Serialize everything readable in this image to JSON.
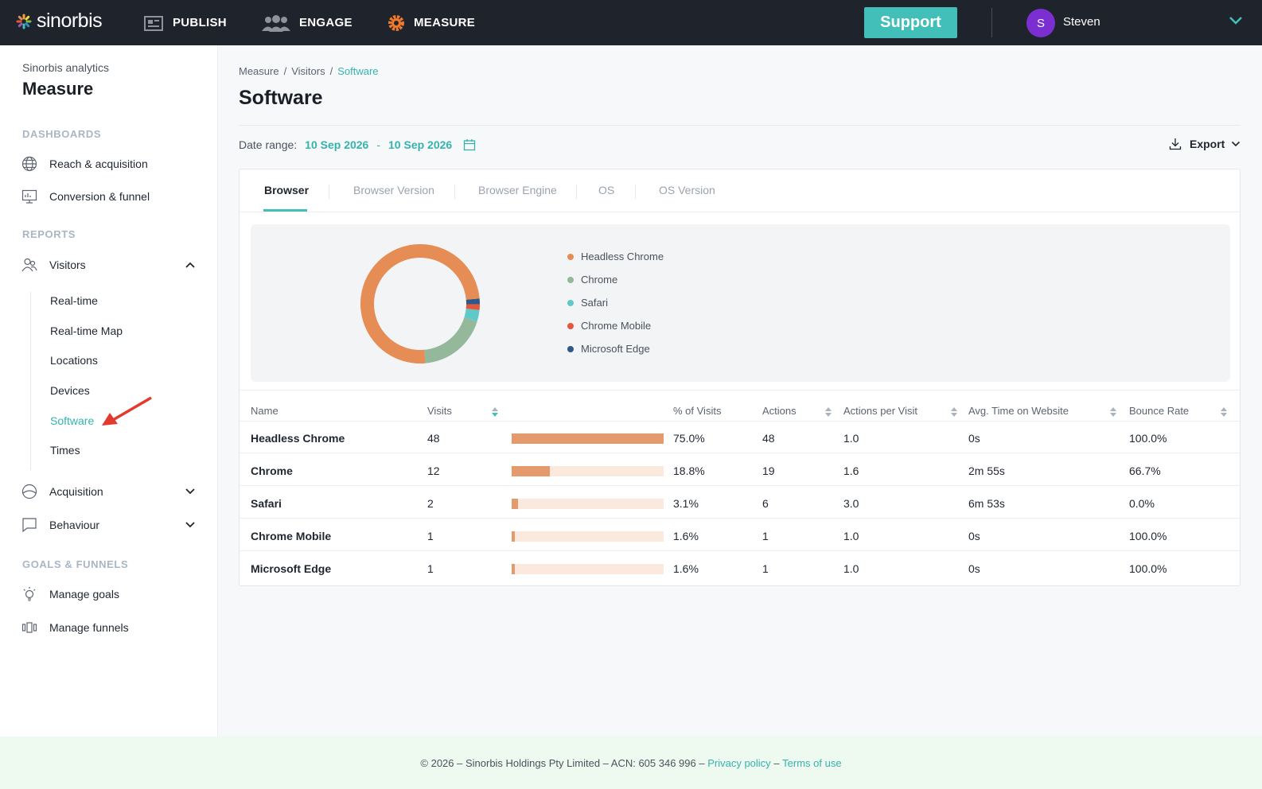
{
  "topbar": {
    "logo": "sinorbis",
    "nav": [
      {
        "label": "PUBLISH",
        "icon": "publish-icon"
      },
      {
        "label": "ENGAGE",
        "icon": "people-icon"
      },
      {
        "label": "MEASURE",
        "icon": "gear-icon"
      }
    ],
    "support_label": "Support",
    "user_initial": "S",
    "user_name": "Steven",
    "colors": {
      "bg": "#1f232b",
      "support": "#43bfba",
      "avatar": "#7b2fd1"
    }
  },
  "sidebar": {
    "subtitle": "Sinorbis analytics",
    "title": "Measure",
    "sections": {
      "dashboards": "DASHBOARDS",
      "reports": "REPORTS",
      "goals": "GOALS & FUNNELS"
    },
    "dashboards": [
      {
        "label": "Reach & acquisition",
        "icon": "globe-icon"
      },
      {
        "label": "Conversion & funnel",
        "icon": "presentation-icon"
      }
    ],
    "reports": [
      {
        "label": "Visitors",
        "icon": "visitors-icon"
      },
      {
        "label": "Acquisition",
        "icon": "acquisition-icon"
      },
      {
        "label": "Behaviour",
        "icon": "chat-icon"
      }
    ],
    "visitor_children": [
      "Real-time",
      "Real-time Map",
      "Locations",
      "Devices",
      "Software",
      "Times"
    ],
    "active_child": "Software",
    "goals": [
      {
        "label": "Manage goals",
        "icon": "lightbulb-icon"
      },
      {
        "label": "Manage funnels",
        "icon": "funnel-icon"
      }
    ]
  },
  "main": {
    "breadcrumb": [
      "Measure",
      "Visitors",
      "Software"
    ],
    "title": "Software",
    "date_label": "Date range:",
    "date_from": "10 Sep 2026",
    "date_to": "10 Sep 2026",
    "export_label": "Export",
    "tabs": [
      "Browser",
      "Browser Version",
      "Browser Engine",
      "OS",
      "OS Version"
    ],
    "active_tab": "Browser"
  },
  "chart_data": {
    "type": "pie",
    "categories": [
      "Headless Chrome",
      "Chrome",
      "Safari",
      "Chrome Mobile",
      "Microsoft Edge"
    ],
    "values": [
      48,
      12,
      2,
      1,
      1
    ],
    "colors": [
      "#e58d55",
      "#94b89a",
      "#5fc9c9",
      "#e4573d",
      "#2f5889"
    ],
    "legend": "right"
  },
  "table": {
    "headers": [
      "Name",
      "Visits",
      "% of Visits",
      "Actions",
      "Actions per Visit",
      "Avg. Time on Website",
      "Bounce Rate"
    ],
    "rows": [
      {
        "name": "Headless Chrome",
        "visits": "48",
        "pct": "75.0%",
        "share": 1.0,
        "actions": "48",
        "apv": "1.0",
        "time": "0s",
        "bounce": "100.0%"
      },
      {
        "name": "Chrome",
        "visits": "12",
        "pct": "18.8%",
        "share": 0.25,
        "actions": "19",
        "apv": "1.6",
        "time": "2m 55s",
        "bounce": "66.7%"
      },
      {
        "name": "Safari",
        "visits": "2",
        "pct": "3.1%",
        "share": 0.042,
        "actions": "6",
        "apv": "3.0",
        "time": "6m 53s",
        "bounce": "0.0%"
      },
      {
        "name": "Chrome Mobile",
        "visits": "1",
        "pct": "1.6%",
        "share": 0.021,
        "actions": "1",
        "apv": "1.0",
        "time": "0s",
        "bounce": "100.0%"
      },
      {
        "name": "Microsoft Edge",
        "visits": "1",
        "pct": "1.6%",
        "share": 0.021,
        "actions": "1",
        "apv": "1.0",
        "time": "0s",
        "bounce": "100.0%"
      }
    ]
  },
  "footer": {
    "text": "© 2026 – Sinorbis Holdings Pty Limited – ACN: 605 346 996 –",
    "privacy": "Privacy policy",
    "dash": "–",
    "terms": "Terms of use"
  }
}
